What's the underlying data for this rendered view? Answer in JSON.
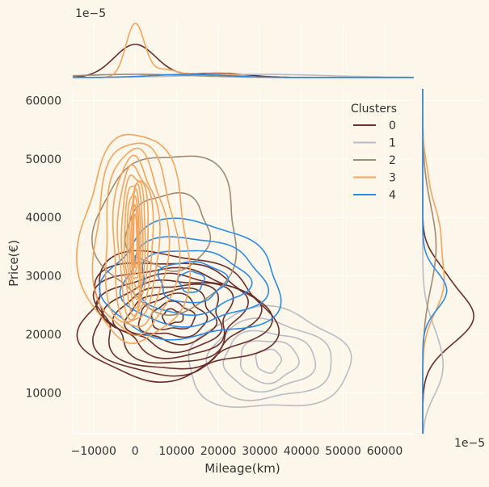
{
  "chart_data": {
    "type": "kde-jointplot",
    "xlabel": "Mileage(km)",
    "ylabel": "Price(€)",
    "xlim": [
      -15000,
      67000
    ],
    "ylim": [
      3000,
      62000
    ],
    "x_ticks": [
      -10000,
      0,
      10000,
      20000,
      30000,
      40000,
      50000,
      60000
    ],
    "y_ticks": [
      10000,
      20000,
      30000,
      40000,
      50000,
      60000
    ],
    "top_scale_label": "1e−5",
    "right_scale_label": "1e−5",
    "legend": {
      "title": "Clusters",
      "position": "top-right"
    },
    "grid": true,
    "series": [
      {
        "name": "0",
        "color": "#6b2e2a"
      },
      {
        "name": "1",
        "color": "#b9bcc4"
      },
      {
        "name": "2",
        "color": "#a08a72"
      },
      {
        "name": "3",
        "color": "#f3a55b"
      },
      {
        "name": "4",
        "color": "#2a8ae8"
      }
    ],
    "contours": [
      {
        "series": 1,
        "c": [
          32000,
          15500
        ],
        "rx": [
          3000,
          7000,
          11000,
          15000,
          19500
        ],
        "ry": [
          2000,
          3600,
          5000,
          6700,
          8500
        ],
        "jx": 0.06,
        "jy": 0.05
      },
      {
        "series": 0,
        "c": [
          9000,
          23000
        ],
        "rx": [
          2500,
          5200,
          8000,
          10500,
          12500,
          14500,
          16500,
          18500,
          20500,
          22500
        ],
        "ry": [
          1200,
          2300,
          3500,
          4500,
          5600,
          6600,
          7600,
          8600,
          9600,
          10700
        ],
        "jx": 0.1,
        "jy": 0.08
      },
      {
        "series": 2,
        "c": [
          8000,
          37500
        ],
        "rx": [
          10000,
          17000
        ],
        "ry": [
          6500,
          13500
        ],
        "jx": 0.05,
        "jy": 0.05
      },
      {
        "series": 4,
        "c": [
          13500,
          29000
        ],
        "rx": [
          3000,
          8000,
          13000,
          17000,
          21000
        ],
        "ry": [
          1800,
          3500,
          5500,
          7500,
          10000
        ],
        "jx": 0.07,
        "jy": 0.06
      },
      {
        "series": 3,
        "c": [
          0,
          36000
        ],
        "rx": [
          400,
          700,
          1000,
          1400,
          1900,
          2500,
          3200,
          4200,
          5500,
          7500,
          10000,
          13000
        ],
        "ry": [
          4500,
          5800,
          7000,
          8200,
          9400,
          10500,
          11700,
          12800,
          14000,
          15200,
          16400,
          17800
        ],
        "jx": 0.06,
        "jy": 0.05
      }
    ],
    "x_marginal": [
      {
        "series": 0,
        "peaks": [
          [
            0,
            5000,
            0.62
          ],
          [
            20000,
            7000,
            0.08
          ]
        ]
      },
      {
        "series": 1,
        "peaks": [
          [
            30000,
            16000,
            0.06
          ]
        ]
      },
      {
        "series": 2,
        "peaks": [
          [
            0,
            14000,
            0.06
          ]
        ]
      },
      {
        "series": 3,
        "peaks": [
          [
            0,
            2200,
            1.0
          ],
          [
            7000,
            3500,
            0.15
          ],
          [
            20000,
            5000,
            0.07
          ]
        ]
      },
      {
        "series": 4,
        "peaks": [
          [
            13000,
            9000,
            0.06
          ]
        ]
      }
    ],
    "y_marginal": [
      {
        "series": 0,
        "peaks": [
          [
            23000,
            4500,
            0.95
          ],
          [
            31000,
            3000,
            0.2
          ]
        ]
      },
      {
        "series": 1,
        "peaks": [
          [
            17000,
            5000,
            0.3
          ],
          [
            12000,
            3500,
            0.15
          ]
        ]
      },
      {
        "series": 2,
        "peaks": [
          [
            35000,
            7000,
            0.25
          ]
        ]
      },
      {
        "series": 3,
        "peaks": [
          [
            28000,
            4500,
            0.35
          ],
          [
            38000,
            5000,
            0.3
          ],
          [
            48000,
            3000,
            0.05
          ]
        ]
      },
      {
        "series": 4,
        "peaks": [
          [
            27500,
            3200,
            0.45
          ]
        ]
      }
    ]
  }
}
